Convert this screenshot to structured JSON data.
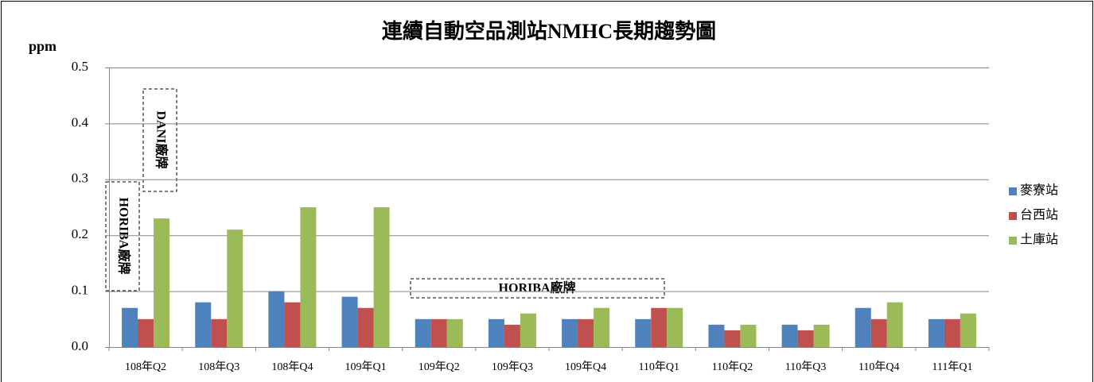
{
  "chart_data": {
    "type": "bar",
    "title": "連續自動空品測站NMHC長期趨勢圖",
    "y_label": "ppm",
    "categories": [
      "108年Q2",
      "108年Q3",
      "108年Q4",
      "109年Q1",
      "109年Q2",
      "109年Q3",
      "109年Q4",
      "110年Q1",
      "110年Q2",
      "110年Q3",
      "110年Q4",
      "111年Q1"
    ],
    "series": [
      {
        "name": "麥寮站",
        "color": "#4f81bd",
        "values": [
          0.07,
          0.08,
          0.1,
          0.09,
          0.05,
          0.05,
          0.05,
          0.05,
          0.04,
          0.04,
          0.07,
          0.05
        ]
      },
      {
        "name": "台西站",
        "color": "#c0504d",
        "values": [
          0.05,
          0.05,
          0.08,
          0.07,
          0.05,
          0.04,
          0.05,
          0.07,
          0.03,
          0.03,
          0.05,
          0.05
        ]
      },
      {
        "name": "土庫站",
        "color": "#9bbb59",
        "values": [
          0.23,
          0.21,
          0.25,
          0.25,
          0.05,
          0.06,
          0.07,
          0.07,
          0.04,
          0.04,
          0.08,
          0.06
        ]
      }
    ],
    "ylim": [
      0,
      0.5
    ],
    "yticks": [
      {
        "value": 0,
        "label": "0.0"
      },
      0.1,
      0.2,
      0.3,
      0.4,
      0.5
    ],
    "grid": true,
    "legend": "right",
    "annotations": [
      "DANI廠牌",
      "HORIBA廠牌",
      "HORIBA廠牌"
    ]
  }
}
